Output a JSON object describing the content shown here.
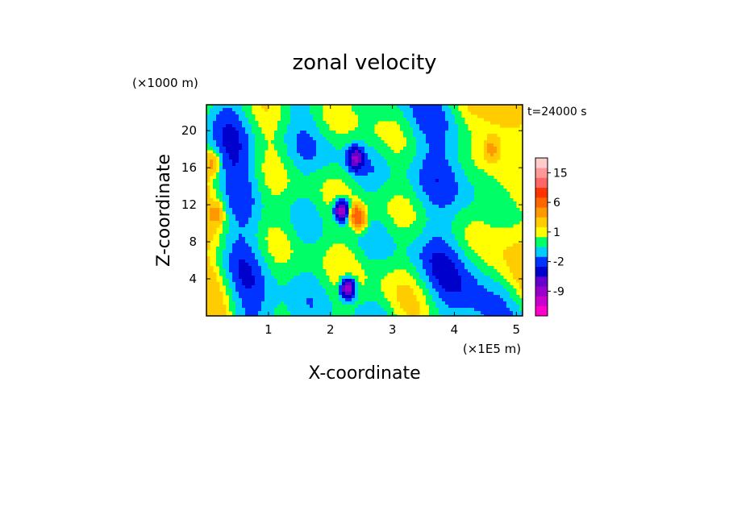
{
  "chart_data": {
    "type": "heatmap",
    "title": "zonal velocity",
    "xlabel": "X-coordinate",
    "ylabel": "Z-coordinate",
    "x_unit": "(×1E5 m)",
    "y_unit": "(×1000 m)",
    "time_label": "t=24000 s",
    "xlim": [
      0,
      5.1
    ],
    "ylim": [
      0,
      22.8
    ],
    "x_ticks": [
      1,
      2,
      3,
      4,
      5
    ],
    "y_ticks": [
      4,
      8,
      12,
      16,
      20
    ],
    "colorbar": {
      "levels": [
        -15,
        -12,
        -9,
        -6,
        -4,
        -2,
        -1,
        0,
        1,
        2,
        4,
        6,
        9,
        12,
        15,
        18
      ],
      "tick_labels": [
        "15",
        "6",
        "1",
        "-2",
        "-9"
      ],
      "tick_values": [
        15,
        6,
        1,
        -2,
        -9
      ],
      "colors": [
        "#ff00cc",
        "#cc00cc",
        "#9900cc",
        "#6600cc",
        "#0000cc",
        "#0033ff",
        "#00ccff",
        "#00ff66",
        "#ffff00",
        "#ffcc00",
        "#ff9900",
        "#ff6600",
        "#ff3300",
        "#ff6666",
        "#ff9999",
        "#ffcccc"
      ]
    },
    "features": [
      {
        "kind": "min",
        "x": 2.18,
        "z": 11.4,
        "value": -9
      },
      {
        "kind": "min",
        "x": 2.28,
        "z": 3.0,
        "value": -9
      },
      {
        "kind": "min",
        "x": 2.4,
        "z": 17.0,
        "value": -6
      },
      {
        "kind": "max",
        "x": 2.42,
        "z": 11.0,
        "value": 6
      },
      {
        "kind": "max",
        "x": 2.48,
        "z": 10.2,
        "value": 4
      },
      {
        "kind": "max",
        "x": 4.6,
        "z": 18.0,
        "value": 4
      },
      {
        "kind": "max",
        "x": 0.1,
        "z": 16.5,
        "value": 4
      },
      {
        "kind": "max",
        "x": 0.15,
        "z": 11.0,
        "value": 4
      }
    ]
  }
}
